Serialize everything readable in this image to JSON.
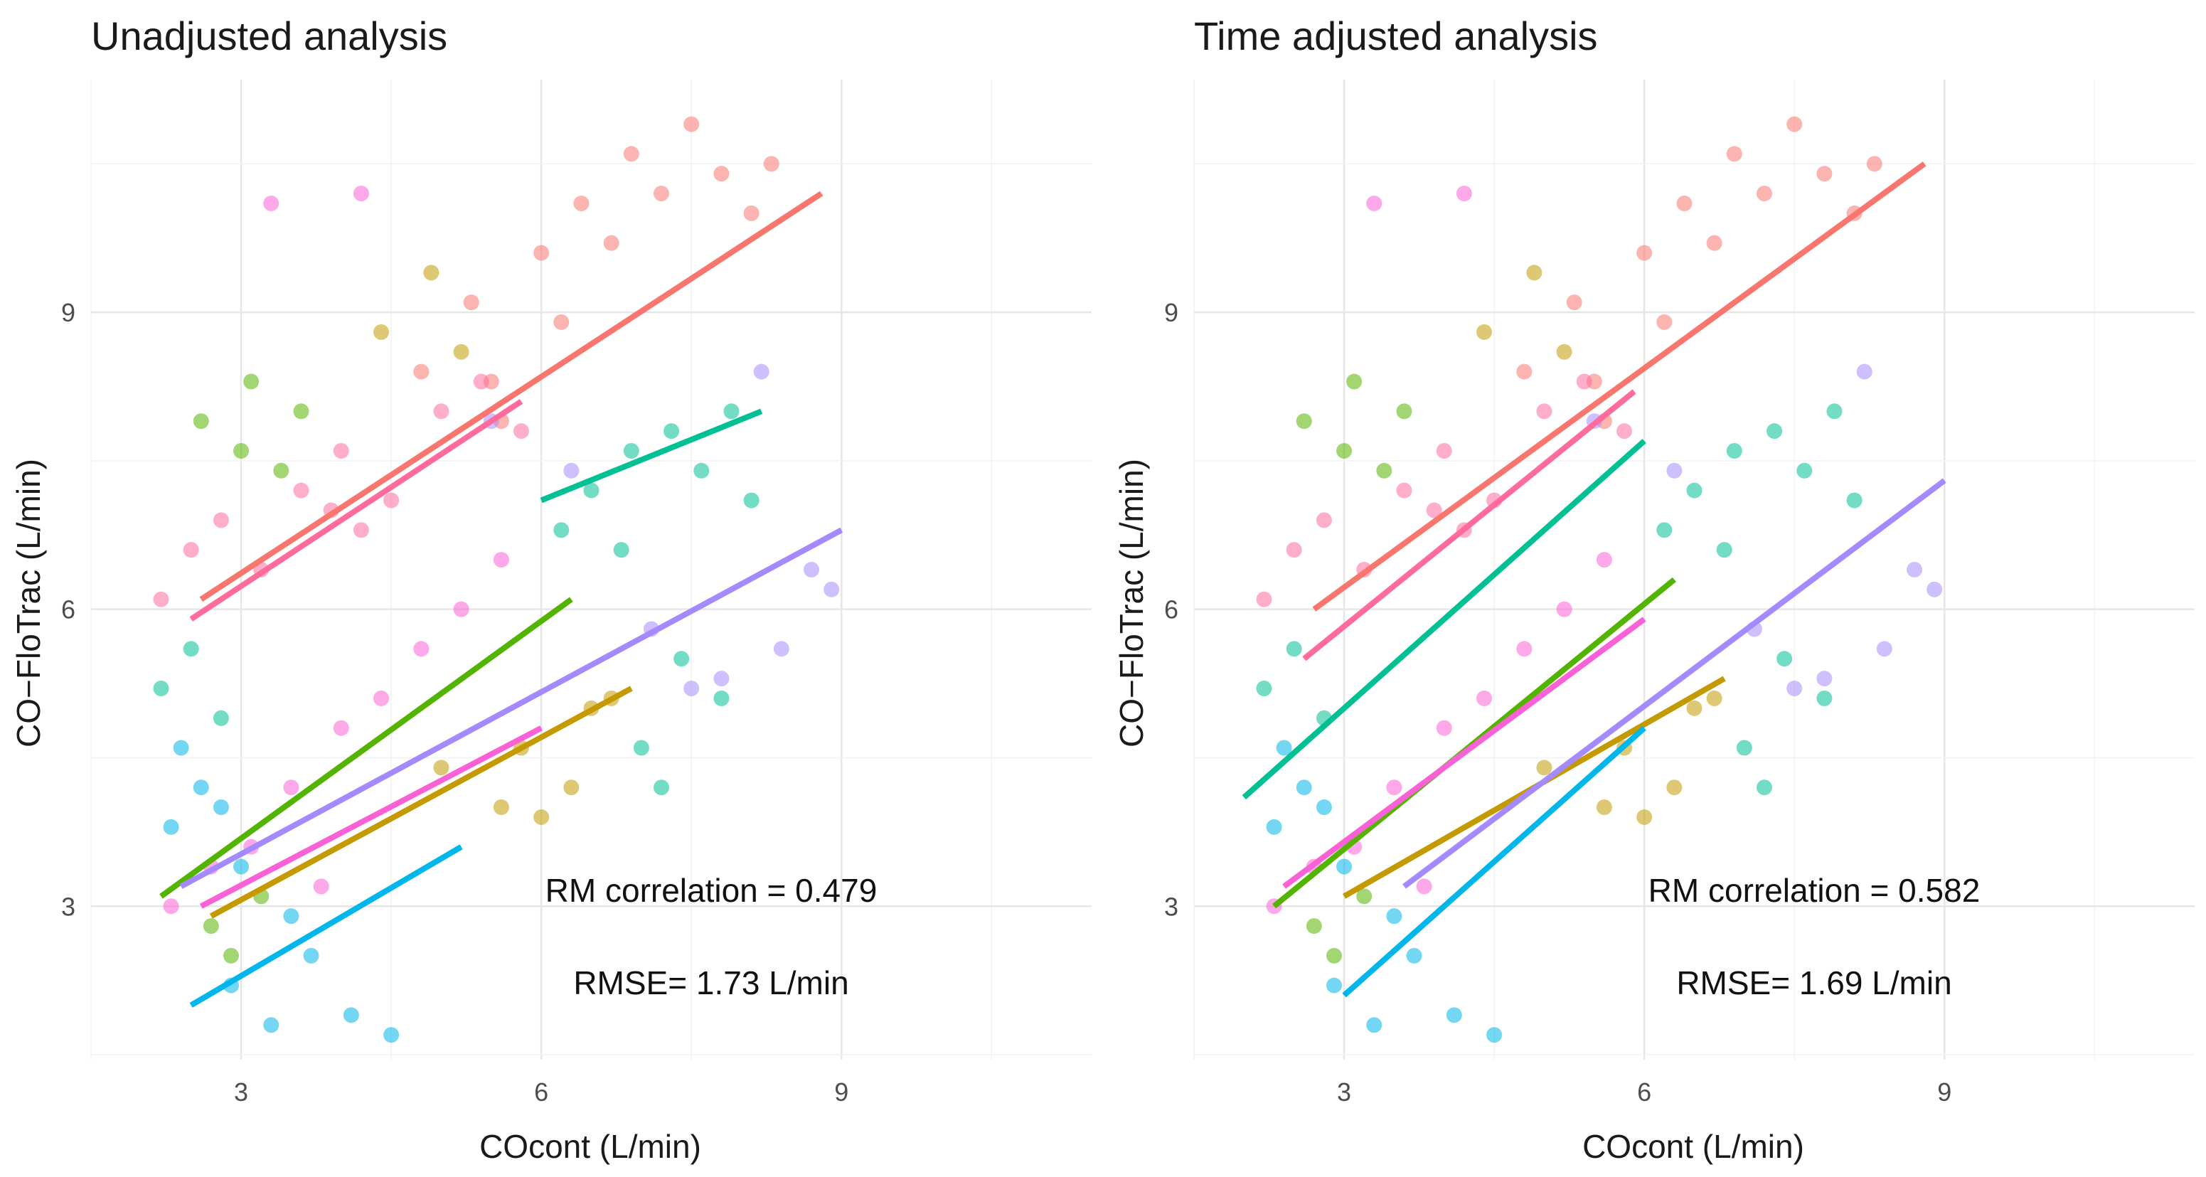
{
  "chart_data": [
    {
      "type": "scatter",
      "title": "Unadjusted analysis",
      "xlabel": "COcont (L/min)",
      "ylabel": "CO−FloTrac (L/min)",
      "xlim": [
        1.5,
        11.5
      ],
      "ylim": [
        1.45,
        11.35
      ],
      "x_ticks": [
        "3",
        "6",
        "9"
      ],
      "y_ticks": [
        "3",
        "6",
        "9"
      ],
      "grid": true,
      "legend": "none",
      "annotations": [
        "RM correlation = 0.479",
        "RMSE= 1.73 L/min"
      ],
      "series": [
        {
          "color": "#F8766D",
          "x": [
            4.8,
            5.3,
            5.5,
            6.0,
            6.4,
            6.9,
            7.2,
            7.5,
            7.8,
            8.1,
            8.3,
            5.6,
            6.2,
            6.7
          ],
          "y": [
            8.4,
            9.1,
            8.3,
            9.6,
            10.1,
            10.6,
            10.2,
            10.9,
            10.4,
            10.0,
            10.5,
            7.9,
            8.9,
            9.7
          ],
          "fit": [
            [
              2.6,
              6.1
            ],
            [
              8.8,
              10.2
            ]
          ]
        },
        {
          "color": "#C49A00",
          "x": [
            4.4,
            4.9,
            5.2,
            5.6,
            6.0,
            6.5,
            5.0,
            5.8,
            6.3,
            6.7
          ],
          "y": [
            8.8,
            9.4,
            8.6,
            4.0,
            3.9,
            5.0,
            4.4,
            4.6,
            4.2,
            5.1
          ],
          "fit": [
            [
              2.7,
              2.9
            ],
            [
              6.9,
              5.2
            ]
          ]
        },
        {
          "color": "#53B400",
          "x": [
            2.6,
            3.1,
            3.4,
            2.9,
            3.2,
            3.6,
            2.7,
            3.0
          ],
          "y": [
            7.9,
            8.3,
            7.4,
            2.5,
            3.1,
            8.0,
            2.8,
            7.6
          ],
          "fit": [
            [
              2.2,
              3.1
            ],
            [
              6.3,
              6.1
            ]
          ]
        },
        {
          "color": "#00C094",
          "x": [
            2.2,
            2.5,
            2.8,
            6.5,
            6.9,
            7.3,
            7.6,
            7.9,
            8.1,
            6.2,
            7.0,
            7.4,
            7.8,
            6.8,
            7.2
          ],
          "y": [
            5.2,
            5.6,
            4.9,
            7.2,
            7.6,
            7.8,
            7.4,
            8.0,
            7.1,
            6.8,
            4.6,
            5.5,
            5.1,
            6.6,
            4.2
          ],
          "fit": [
            [
              6.0,
              7.1
            ],
            [
              8.2,
              8.0
            ]
          ]
        },
        {
          "color": "#00B6EB",
          "x": [
            2.3,
            2.6,
            2.9,
            3.3,
            3.7,
            4.1,
            4.5,
            3.0,
            3.5,
            2.4,
            2.8
          ],
          "y": [
            3.8,
            4.2,
            2.2,
            1.8,
            2.5,
            1.9,
            1.7,
            3.4,
            2.9,
            4.6,
            4.0
          ],
          "fit": [
            [
              2.5,
              2.0
            ],
            [
              5.2,
              3.6
            ]
          ]
        },
        {
          "color": "#A58AFF",
          "x": [
            5.5,
            6.3,
            7.1,
            7.8,
            8.4,
            8.7,
            8.9,
            8.2,
            7.5
          ],
          "y": [
            7.9,
            7.4,
            5.8,
            5.3,
            5.6,
            6.4,
            6.2,
            8.4,
            5.2
          ],
          "fit": [
            [
              2.4,
              3.2
            ],
            [
              9.0,
              6.8
            ]
          ]
        },
        {
          "color": "#FB61D7",
          "x": [
            2.3,
            2.7,
            3.1,
            3.5,
            4.0,
            4.4,
            4.8,
            5.2,
            5.6,
            3.3,
            4.2,
            3.8
          ],
          "y": [
            3.0,
            3.4,
            3.6,
            4.2,
            4.8,
            5.1,
            5.6,
            6.0,
            6.5,
            10.1,
            10.2,
            3.2
          ],
          "fit": [
            [
              2.6,
              3.0
            ],
            [
              6.0,
              4.8
            ]
          ]
        },
        {
          "color": "#FF6C9C",
          "x": [
            2.2,
            2.5,
            2.8,
            3.2,
            3.6,
            4.0,
            4.5,
            5.0,
            5.4,
            5.8,
            4.2,
            3.9
          ],
          "y": [
            6.1,
            6.6,
            6.9,
            6.4,
            7.2,
            7.6,
            7.1,
            8.0,
            8.3,
            7.8,
            6.8,
            7.0
          ],
          "fit": [
            [
              2.5,
              5.9
            ],
            [
              5.8,
              8.1
            ]
          ]
        }
      ]
    },
    {
      "type": "scatter",
      "title": "Time adjusted analysis",
      "xlabel": "COcont (L/min)",
      "ylabel": "CO−FloTrac (L/min)",
      "xlim": [
        1.5,
        11.5
      ],
      "ylim": [
        1.45,
        11.35
      ],
      "x_ticks": [
        "3",
        "6",
        "9"
      ],
      "y_ticks": [
        "3",
        "6",
        "9"
      ],
      "grid": true,
      "legend": "none",
      "annotations": [
        "RM correlation = 0.582",
        "RMSE= 1.69 L/min"
      ],
      "series": [
        {
          "color": "#F8766D",
          "x": [
            4.8,
            5.3,
            5.5,
            6.0,
            6.4,
            6.9,
            7.2,
            7.5,
            7.8,
            8.1,
            8.3,
            5.6,
            6.2,
            6.7
          ],
          "y": [
            8.4,
            9.1,
            8.3,
            9.6,
            10.1,
            10.6,
            10.2,
            10.9,
            10.4,
            10.0,
            10.5,
            7.9,
            8.9,
            9.7
          ],
          "fit": [
            [
              2.7,
              6.0
            ],
            [
              8.8,
              10.5
            ]
          ]
        },
        {
          "color": "#C49A00",
          "x": [
            4.4,
            4.9,
            5.2,
            5.6,
            6.0,
            6.5,
            5.0,
            5.8,
            6.3,
            6.7
          ],
          "y": [
            8.8,
            9.4,
            8.6,
            4.0,
            3.9,
            5.0,
            4.4,
            4.6,
            4.2,
            5.1
          ],
          "fit": [
            [
              3.0,
              3.1
            ],
            [
              6.8,
              5.3
            ]
          ]
        },
        {
          "color": "#53B400",
          "x": [
            2.6,
            3.1,
            3.4,
            2.9,
            3.2,
            3.6,
            2.7,
            3.0
          ],
          "y": [
            7.9,
            8.3,
            7.4,
            2.5,
            3.1,
            8.0,
            2.8,
            7.6
          ],
          "fit": [
            [
              2.3,
              3.0
            ],
            [
              6.3,
              6.3
            ]
          ]
        },
        {
          "color": "#00C094",
          "x": [
            2.2,
            2.5,
            2.8,
            6.5,
            6.9,
            7.3,
            7.6,
            7.9,
            8.1,
            6.2,
            7.0,
            7.4,
            7.8,
            6.8,
            7.2
          ],
          "y": [
            5.2,
            5.6,
            4.9,
            7.2,
            7.6,
            7.8,
            7.4,
            8.0,
            7.1,
            6.8,
            4.6,
            5.5,
            5.1,
            6.6,
            4.2
          ],
          "fit": [
            [
              2.0,
              4.1
            ],
            [
              6.0,
              7.7
            ]
          ]
        },
        {
          "color": "#00B6EB",
          "x": [
            2.3,
            2.6,
            2.9,
            3.3,
            3.7,
            4.1,
            4.5,
            3.0,
            3.5,
            2.4,
            2.8
          ],
          "y": [
            3.8,
            4.2,
            2.2,
            1.8,
            2.5,
            1.9,
            1.7,
            3.4,
            2.9,
            4.6,
            4.0
          ],
          "fit": [
            [
              3.0,
              2.1
            ],
            [
              6.0,
              4.8
            ]
          ]
        },
        {
          "color": "#A58AFF",
          "x": [
            5.5,
            6.3,
            7.1,
            7.8,
            8.4,
            8.7,
            8.9,
            8.2,
            7.5
          ],
          "y": [
            7.9,
            7.4,
            5.8,
            5.3,
            5.6,
            6.4,
            6.2,
            8.4,
            5.2
          ],
          "fit": [
            [
              3.6,
              3.2
            ],
            [
              9.0,
              7.3
            ]
          ]
        },
        {
          "color": "#FB61D7",
          "x": [
            2.3,
            2.7,
            3.1,
            3.5,
            4.0,
            4.4,
            4.8,
            5.2,
            5.6,
            3.3,
            4.2,
            3.8
          ],
          "y": [
            3.0,
            3.4,
            3.6,
            4.2,
            4.8,
            5.1,
            5.6,
            6.0,
            6.5,
            10.1,
            10.2,
            3.2
          ],
          "fit": [
            [
              2.4,
              3.2
            ],
            [
              6.0,
              5.9
            ]
          ]
        },
        {
          "color": "#FF6C9C",
          "x": [
            2.2,
            2.5,
            2.8,
            3.2,
            3.6,
            4.0,
            4.5,
            5.0,
            5.4,
            5.8,
            4.2,
            3.9
          ],
          "y": [
            6.1,
            6.6,
            6.9,
            6.4,
            7.2,
            7.6,
            7.1,
            8.0,
            8.3,
            7.8,
            6.8,
            7.0
          ],
          "fit": [
            [
              2.6,
              5.5
            ],
            [
              5.9,
              8.2
            ]
          ]
        }
      ]
    }
  ]
}
